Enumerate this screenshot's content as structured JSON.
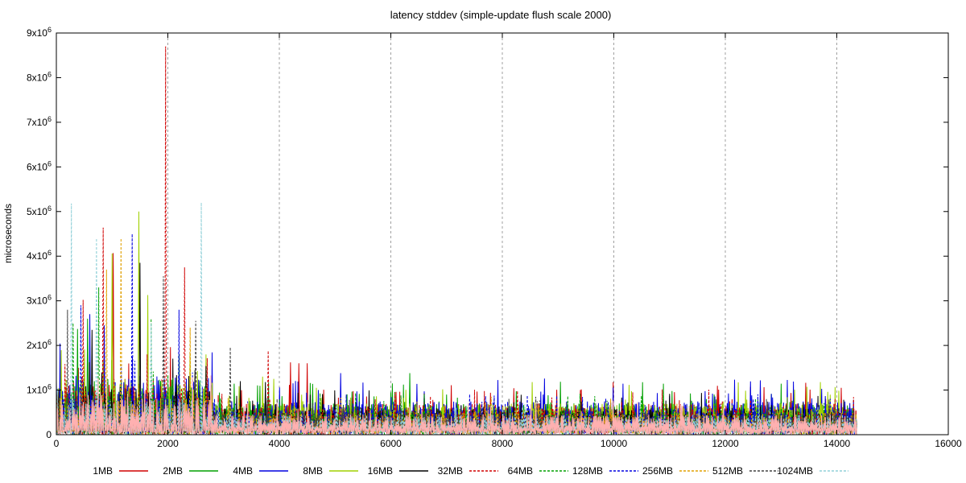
{
  "chart_data": {
    "type": "line",
    "title": "latency stddev (simple-update flush scale 2000)",
    "xlabel": "",
    "ylabel": "microseconds",
    "xlim": [
      0,
      16000
    ],
    "ylim": [
      0,
      9000000
    ],
    "x_ticks": [
      0,
      2000,
      4000,
      6000,
      8000,
      10000,
      12000,
      14000,
      16000
    ],
    "x_tick_labels": [
      "0",
      "2000",
      "4000",
      "6000",
      "8000",
      "10000",
      "12000",
      "14000",
      "16000"
    ],
    "y_ticks": [
      0,
      1000000,
      2000000,
      3000000,
      4000000,
      5000000,
      6000000,
      7000000,
      8000000,
      9000000
    ],
    "y_tick_labels": [
      {
        "base": "0",
        "exp": ""
      },
      {
        "base": "1x10",
        "exp": "6"
      },
      {
        "base": "2x10",
        "exp": "6"
      },
      {
        "base": "3x10",
        "exp": "6"
      },
      {
        "base": "4x10",
        "exp": "6"
      },
      {
        "base": "5x10",
        "exp": "6"
      },
      {
        "base": "6x10",
        "exp": "6"
      },
      {
        "base": "7x10",
        "exp": "6"
      },
      {
        "base": "8x10",
        "exp": "6"
      },
      {
        "base": "9x10",
        "exp": "6"
      }
    ],
    "grid": "vertical-dashed",
    "legend_position": "bottom",
    "x_end": 14350,
    "series": [
      {
        "name": "1MB",
        "color": "#d00000",
        "dash": "solid",
        "x_end": 14350,
        "spikes": [
          [
            1020,
            4070000
          ],
          [
            4200,
            1620000
          ],
          [
            4350,
            1600000
          ],
          [
            4500,
            1600000
          ],
          [
            13520,
            1010000
          ],
          [
            13800,
            800000
          ]
        ],
        "base": [
          300000,
          700000
        ]
      },
      {
        "name": "2MB",
        "color": "#00a000",
        "dash": "solid",
        "x_end": 14350,
        "spikes": [
          [
            380,
            2370000
          ],
          [
            560,
            2600000
          ],
          [
            6340,
            1380000
          ],
          [
            6000,
            950000
          ],
          [
            7000,
            900000
          ],
          [
            11800,
            900000
          ]
        ],
        "base": [
          300000,
          700000
        ]
      },
      {
        "name": "4MB",
        "color": "#0000e0",
        "dash": "solid",
        "x_end": 14350,
        "spikes": [
          [
            600,
            2700000
          ],
          [
            860,
            2450000
          ],
          [
            2780,
            1110000
          ],
          [
            4700,
            1000000
          ],
          [
            5100,
            1380000
          ],
          [
            11000,
            870000
          ],
          [
            14300,
            780000
          ]
        ],
        "base": [
          300000,
          750000
        ]
      },
      {
        "name": "8MB",
        "color": "#a0d000",
        "dash": "solid",
        "x_end": 14350,
        "spikes": [
          [
            1000,
            4060000
          ],
          [
            1480,
            5000000
          ],
          [
            1640,
            3130000
          ],
          [
            3700,
            1300000
          ],
          [
            3900,
            1250000
          ]
        ],
        "base": [
          250000,
          700000
        ]
      },
      {
        "name": "16MB",
        "color": "#000000",
        "dash": "solid",
        "x_end": 14350,
        "spikes": [
          [
            1500,
            3850000
          ],
          [
            640,
            2350000
          ],
          [
            3300,
            1200000
          ],
          [
            3750,
            1180000
          ]
        ],
        "base": [
          250000,
          600000
        ]
      },
      {
        "name": "32MB",
        "color": "#d00000",
        "dash": "dashed",
        "x_end": 14350,
        "spikes": [
          [
            480,
            3020000
          ],
          [
            840,
            4640000
          ],
          [
            1960,
            8700000
          ],
          [
            2300,
            3750000
          ],
          [
            3800,
            1880000
          ],
          [
            9400,
            1000000
          ]
        ],
        "base": [
          200000,
          600000
        ]
      },
      {
        "name": "64MB",
        "color": "#00a000",
        "dash": "dashed",
        "x_end": 14350,
        "spikes": [
          [
            300,
            2500000
          ],
          [
            760,
            3300000
          ],
          [
            1700,
            2600000
          ],
          [
            6600,
            900000
          ]
        ],
        "base": [
          200000,
          550000
        ]
      },
      {
        "name": "128MB",
        "color": "#0000e0",
        "dash": "dashed",
        "x_end": 14350,
        "spikes": [
          [
            440,
            2900000
          ],
          [
            1360,
            4500000
          ],
          [
            2200,
            2800000
          ],
          [
            5200,
            900000
          ],
          [
            12500,
            800000
          ]
        ],
        "base": [
          200000,
          550000
        ]
      },
      {
        "name": "256MB",
        "color": "#e0a000",
        "dash": "dashed",
        "x_end": 14350,
        "spikes": [
          [
            1160,
            4400000
          ],
          [
            900,
            3700000
          ],
          [
            2400,
            2400000
          ],
          [
            7800,
            850000
          ]
        ],
        "base": [
          150000,
          500000
        ]
      },
      {
        "name": "512MB",
        "color": "#404040",
        "dash": "dashed",
        "x_end": 14350,
        "spikes": [
          [
            200,
            2800000
          ],
          [
            1920,
            3550000
          ],
          [
            2500,
            2550000
          ],
          [
            3120,
            1960000
          ],
          [
            8600,
            850000
          ]
        ],
        "base": [
          150000,
          500000
        ]
      },
      {
        "name": "1024MB",
        "color": "#90d0d8",
        "dash": "dashed",
        "x_end": 14350,
        "spikes": [
          [
            270,
            5180000
          ],
          [
            2600,
            5200000
          ],
          [
            720,
            4400000
          ],
          [
            1700,
            2500000
          ]
        ],
        "base": [
          150000,
          450000
        ]
      },
      {
        "name": "",
        "color": "#ffb0b0",
        "dash": "solid",
        "x_end": 14350,
        "spikes": [],
        "base": [
          100000,
          450000
        ]
      }
    ]
  }
}
